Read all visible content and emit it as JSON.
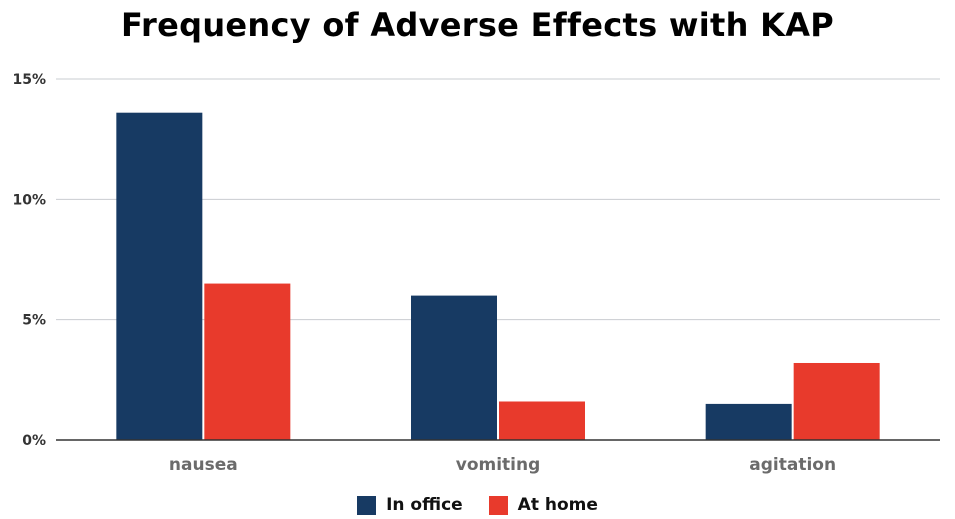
{
  "chart_data": {
    "type": "bar",
    "title": "Frequency of Adverse Effects with KAP",
    "xlabel": "",
    "ylabel": "",
    "categories": [
      "nausea",
      "vomiting",
      "agitation"
    ],
    "series": [
      {
        "name": "In office",
        "values": [
          13.6,
          6.0,
          1.5
        ],
        "color": "#173a63"
      },
      {
        "name": "At home",
        "values": [
          6.5,
          1.6,
          3.2
        ],
        "color": "#e83a2c"
      }
    ],
    "ylim": [
      0,
      15
    ],
    "yticks": [
      0,
      5,
      10,
      15
    ],
    "ytick_labels": [
      "0%",
      "5%",
      "10%",
      "15%"
    ],
    "grid": true,
    "legend": "bottom-center"
  }
}
